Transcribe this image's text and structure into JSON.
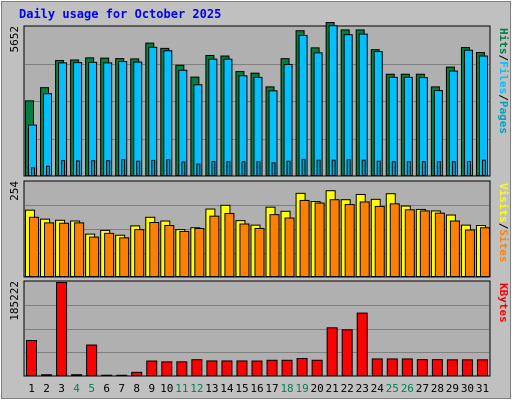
{
  "page_title": "Daily usage for October 2025",
  "colors": {
    "background": "#c0c0c0",
    "plot_background": "#b0b0b0",
    "hits": "#008040",
    "files": "#00c0ff",
    "pages": "#00a0c0",
    "visits": "#ffff00",
    "sites": "#ff8000",
    "kbytes": "#ff0000",
    "weekend_label": "#00805c",
    "title": "#0000ff"
  },
  "chart_data": [
    {
      "type": "bar",
      "title": "Daily usage for October 2025",
      "categories": [
        "1",
        "2",
        "3",
        "4",
        "5",
        "6",
        "7",
        "8",
        "9",
        "10",
        "11",
        "12",
        "13",
        "14",
        "15",
        "16",
        "17",
        "18",
        "19",
        "20",
        "21",
        "22",
        "23",
        "24",
        "25",
        "26",
        "27",
        "28",
        "29",
        "30",
        "31"
      ],
      "weekend_days": [
        "4",
        "5",
        "11",
        "12",
        "18",
        "19",
        "25",
        "26"
      ],
      "ymax_label": "5652",
      "ylim": [
        0,
        5652
      ],
      "legend": [
        "Pages",
        "Files",
        "Hits"
      ],
      "series": [
        {
          "name": "Hits",
          "values": [
            2870,
            3370,
            4400,
            4420,
            4500,
            4490,
            4470,
            4460,
            5060,
            4860,
            4220,
            3770,
            4590,
            4570,
            3980,
            3920,
            3400,
            4470,
            5530,
            4880,
            5840,
            5560,
            5560,
            4810,
            3880,
            3880,
            3880,
            3400,
            4150,
            4890,
            4700
          ]
        },
        {
          "name": "Files",
          "values": [
            1950,
            3140,
            4310,
            4320,
            4330,
            4310,
            4360,
            4340,
            4900,
            4770,
            4030,
            3480,
            4450,
            4450,
            3820,
            3760,
            3250,
            4250,
            5350,
            4690,
            5720,
            5380,
            5400,
            4740,
            3760,
            3760,
            3750,
            3260,
            4000,
            4790,
            4570
          ]
        },
        {
          "name": "Pages",
          "values": [
            330,
            390,
            600,
            590,
            600,
            600,
            640,
            580,
            610,
            640,
            550,
            470,
            570,
            560,
            560,
            560,
            520,
            580,
            650,
            620,
            620,
            640,
            620,
            580,
            560,
            560,
            560,
            560,
            560,
            570,
            620
          ]
        }
      ]
    },
    {
      "type": "bar",
      "ymax_label": "254",
      "ylim": [
        0,
        254
      ],
      "legend": [
        "Sites",
        "Visits"
      ],
      "series": [
        {
          "name": "Visits",
          "values": [
            180,
            156,
            153,
            151,
            116,
            126,
            113,
            138,
            161,
            151,
            128,
            133,
            183,
            193,
            152,
            140,
            188,
            177,
            225,
            203,
            232,
            208,
            222,
            209,
            224,
            191,
            182,
            178,
            167,
            140,
            139
          ]
        },
        {
          "name": "Sites",
          "values": [
            161,
            146,
            145,
            146,
            108,
            118,
            106,
            128,
            147,
            139,
            123,
            131,
            164,
            171,
            143,
            131,
            168,
            159,
            206,
            199,
            208,
            195,
            202,
            190,
            197,
            181,
            178,
            172,
            151,
            127,
            133
          ]
        }
      ]
    },
    {
      "type": "bar",
      "ymax_label": "185222",
      "ylim": [
        0,
        185222
      ],
      "legend": [
        "KBytes"
      ],
      "series": [
        {
          "name": "KBytes",
          "values": [
            70900,
            3500,
            185222,
            3500,
            62000,
            2500,
            2500,
            8200,
            30500,
            28900,
            28900,
            33100,
            30700,
            30700,
            30700,
            30500,
            32000,
            32000,
            35400,
            32000,
            96000,
            92000,
            125000,
            34600,
            34600,
            34600,
            33200,
            33200,
            32900,
            32900,
            32900
          ]
        }
      ]
    }
  ]
}
